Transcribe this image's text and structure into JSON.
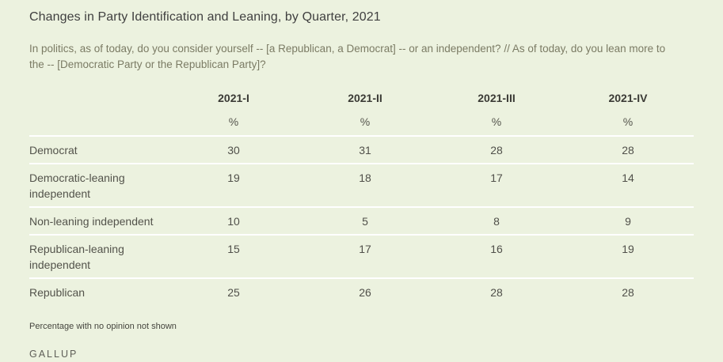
{
  "page": {
    "title": "Changes in Party Identification and Leaning, by Quarter, 2021",
    "question": "In politics, as of today, do you consider yourself -- [a Republican, a Democrat] -- or an independent? // As of today, do you lean more to the -- [Democratic Party or the Republican Party]?",
    "footnote": "Percentage with no opinion not shown",
    "brand": "GALLUP"
  },
  "chart_data": {
    "type": "table",
    "title": "Changes in Party Identification and Leaning, by Quarter, 2021",
    "columns": [
      "2021-I",
      "2021-II",
      "2021-III",
      "2021-IV"
    ],
    "unit_labels": [
      "%",
      "%",
      "%",
      "%"
    ],
    "rows": [
      {
        "label": "Democrat",
        "values": [
          30,
          31,
          28,
          28
        ]
      },
      {
        "label": "Democratic-leaning independent",
        "values": [
          19,
          18,
          17,
          14
        ]
      },
      {
        "label": "Non-leaning independent",
        "values": [
          10,
          5,
          8,
          9
        ]
      },
      {
        "label": "Republican-leaning independent",
        "values": [
          15,
          17,
          16,
          19
        ]
      },
      {
        "label": "Republican",
        "values": [
          25,
          26,
          28,
          28
        ]
      }
    ],
    "footnote": "Percentage with no opinion not shown",
    "source": "GALLUP"
  },
  "colors": {
    "background": "#ECF2DF",
    "row_divider": "#FFFFFF",
    "title_text": "#404040",
    "question_text": "#7B7B64",
    "header_text": "#3A3A35",
    "body_text": "#50504A",
    "brand_text": "#5F5F58"
  }
}
